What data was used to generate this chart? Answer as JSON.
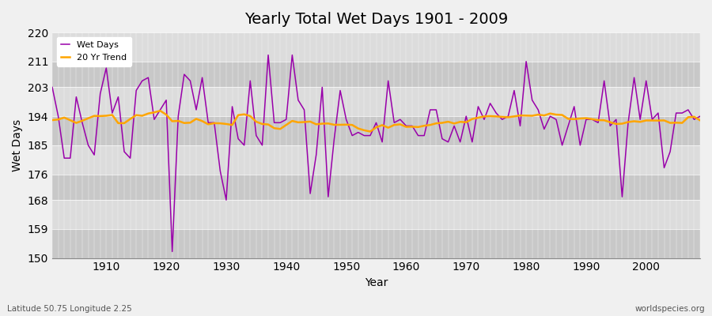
{
  "title": "Yearly Total Wet Days 1901 - 2009",
  "xlabel": "Year",
  "ylabel": "Wet Days",
  "lat_lon_label": "Latitude 50.75 Longitude 2.25",
  "watermark": "worldspecies.org",
  "ylim": [
    150,
    220
  ],
  "yticks": [
    150,
    159,
    168,
    176,
    185,
    194,
    203,
    211,
    220
  ],
  "xlim": [
    1901,
    2009
  ],
  "xticks": [
    1910,
    1920,
    1930,
    1940,
    1950,
    1960,
    1970,
    1980,
    1990,
    2000
  ],
  "wet_days_color": "#9900AA",
  "trend_color": "#FFA500",
  "bg_band_light": "#DCDCDC",
  "bg_band_dark": "#C8C8C8",
  "fig_bg": "#F0F0F0",
  "wet_days": {
    "1901": 203,
    "1902": 194,
    "1903": 181,
    "1904": 181,
    "1905": 200,
    "1906": 192,
    "1907": 185,
    "1908": 182,
    "1909": 201,
    "1910": 209,
    "1911": 195,
    "1912": 200,
    "1913": 183,
    "1914": 181,
    "1915": 202,
    "1916": 205,
    "1917": 206,
    "1918": 193,
    "1919": 196,
    "1920": 199,
    "1921": 152,
    "1922": 194,
    "1923": 207,
    "1924": 205,
    "1925": 196,
    "1926": 206,
    "1927": 192,
    "1928": 192,
    "1929": 177,
    "1930": 168,
    "1931": 197,
    "1932": 187,
    "1933": 185,
    "1934": 205,
    "1935": 188,
    "1936": 185,
    "1937": 213,
    "1938": 192,
    "1939": 192,
    "1940": 193,
    "1941": 213,
    "1942": 199,
    "1943": 196,
    "1944": 170,
    "1945": 182,
    "1946": 203,
    "1947": 169,
    "1948": 187,
    "1949": 202,
    "1950": 193,
    "1951": 188,
    "1952": 189,
    "1953": 188,
    "1954": 188,
    "1955": 192,
    "1956": 186,
    "1957": 205,
    "1958": 192,
    "1959": 193,
    "1960": 191,
    "1961": 191,
    "1962": 188,
    "1963": 188,
    "1964": 196,
    "1965": 196,
    "1966": 187,
    "1967": 186,
    "1968": 191,
    "1969": 186,
    "1970": 194,
    "1971": 186,
    "1972": 197,
    "1973": 193,
    "1974": 198,
    "1975": 195,
    "1976": 193,
    "1977": 194,
    "1978": 202,
    "1979": 191,
    "1980": 211,
    "1981": 199,
    "1982": 196,
    "1983": 190,
    "1984": 194,
    "1985": 193,
    "1986": 185,
    "1987": 191,
    "1988": 197,
    "1989": 185,
    "1990": 193,
    "1991": 193,
    "1992": 192,
    "1993": 205,
    "1994": 191,
    "1995": 193,
    "1996": 169,
    "1997": 192,
    "1998": 206,
    "1999": 193,
    "2000": 205,
    "2001": 193,
    "2002": 195,
    "2003": 178,
    "2004": 183,
    "2005": 195,
    "2006": 195,
    "2007": 196,
    "2008": 193,
    "2009": 194
  }
}
